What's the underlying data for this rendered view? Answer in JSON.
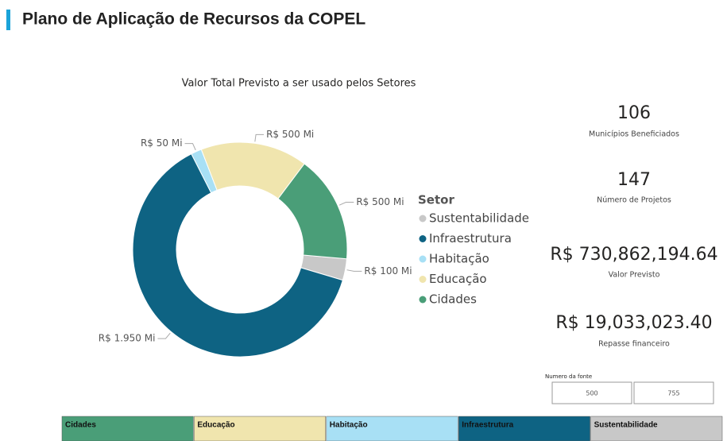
{
  "header": {
    "title": "Plano de Aplicação de Recursos da COPEL"
  },
  "chart_data": {
    "type": "pie",
    "title": "Valor Total Previsto a ser usado pelos Setores",
    "legend_title": "Setor",
    "categories": [
      "Sustentabilidade",
      "Infraestrutura",
      "Habitação",
      "Educação",
      "Cidades"
    ],
    "values": [
      100,
      1950,
      50,
      500,
      500
    ],
    "value_labels": [
      "R$ 100 Mi",
      "R$ 1.950 Mi",
      "R$ 50 Mi",
      "R$ 500 Mi",
      "R$ 500 Mi"
    ],
    "colors": [
      "#c8c8c8",
      "#0e6383",
      "#a8e0f5",
      "#f0e5ae",
      "#4a9e78"
    ],
    "donut": true,
    "legend": "right"
  },
  "cards": [
    {
      "value": "106",
      "label": "Municípios Beneficiados"
    },
    {
      "value": "147",
      "label": "Número de Projetos"
    },
    {
      "value": "R$ 730,862,194.64",
      "label": "Valor Previsto"
    },
    {
      "value": "R$ 19,033,023.40",
      "label": "Repasse financeiro"
    }
  ],
  "slicer": {
    "title": "Numero da fonte",
    "options": [
      "500",
      "755"
    ]
  },
  "tabs": [
    {
      "label": "Cidades",
      "color": "#4a9e78"
    },
    {
      "label": "Educação",
      "color": "#f0e5ae"
    },
    {
      "label": "Habitação",
      "color": "#a8e0f5"
    },
    {
      "label": "Infraestrutura",
      "color": "#0e6383"
    },
    {
      "label": "Sustentabilidade",
      "color": "#c8c8c8"
    }
  ]
}
